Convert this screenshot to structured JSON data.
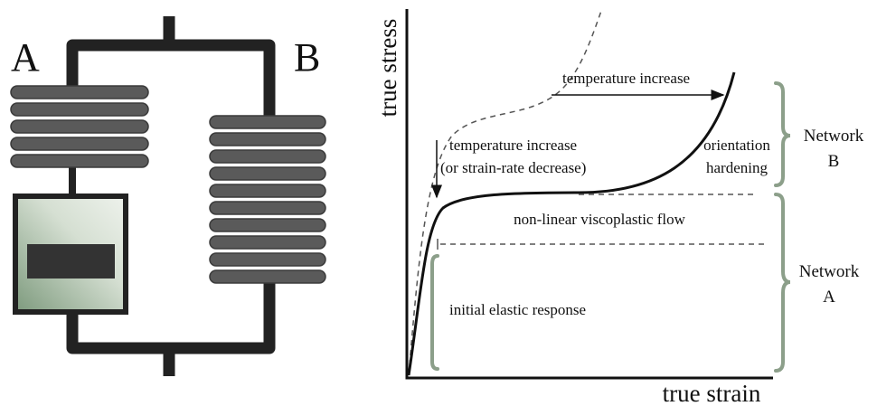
{
  "model": {
    "labels": [
      "A",
      "B"
    ]
  },
  "plot": {
    "y_axis_label": "true stress",
    "x_axis_label": "true strain",
    "annotations": {
      "temperature_right": "temperature increase",
      "temperature_down": [
        "temperature increase",
        "(or strain-rate decrease)"
      ],
      "orientation": [
        "orientation",
        "hardening"
      ],
      "flow": "non-linear viscoplastic flow",
      "elastic": "initial elastic response"
    }
  },
  "networks": [
    {
      "label": [
        "Network",
        "B"
      ]
    },
    {
      "label": [
        "Network",
        "A"
      ]
    }
  ]
}
